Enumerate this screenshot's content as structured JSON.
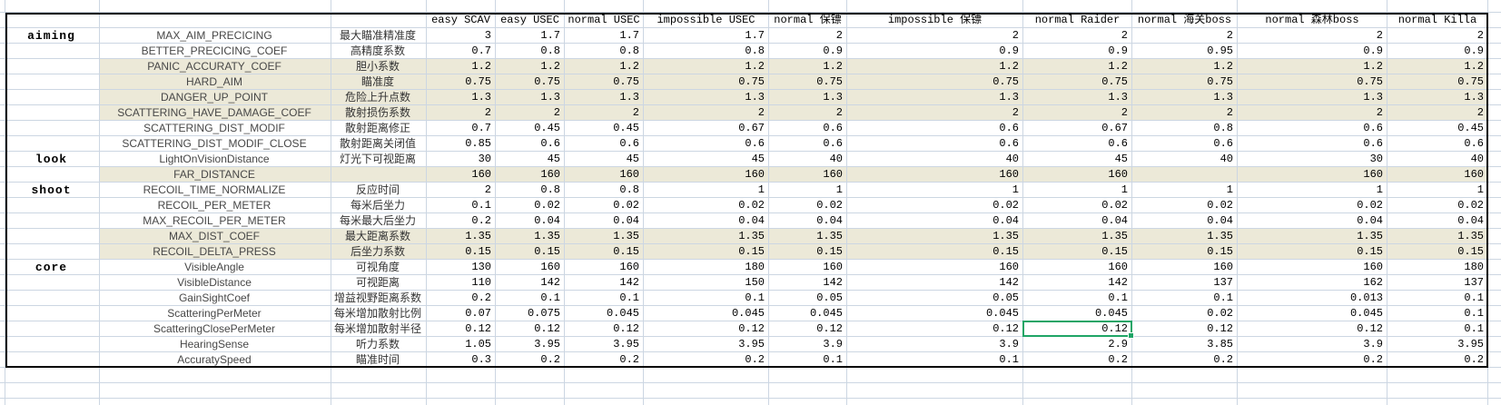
{
  "table": {
    "left_headers": {
      "category": "",
      "param": "",
      "cn": ""
    },
    "value_columns": [
      "easy SCAV",
      "easy USEC",
      "normal USEC",
      "impossible USEC",
      "normal 保镖",
      "impossible 保镖",
      "normal Raider",
      "normal 海关boss",
      "normal 森林boss",
      "normal Killa"
    ],
    "rows": [
      {
        "category": "aiming",
        "param": "MAX_AIM_PRECICING",
        "cn": "最大瞄准精准度",
        "shaded": false,
        "values": [
          "3",
          "1.7",
          "1.7",
          "1.7",
          "2",
          "2",
          "2",
          "2",
          "2",
          "2"
        ]
      },
      {
        "category": "",
        "param": "BETTER_PRECICING_COEF",
        "cn": "高精度系数",
        "shaded": false,
        "values": [
          "0.7",
          "0.8",
          "0.8",
          "0.8",
          "0.9",
          "0.9",
          "0.9",
          "0.95",
          "0.9",
          "0.9"
        ]
      },
      {
        "category": "",
        "param": "PANIC_ACCURATY_COEF",
        "cn": "胆小系数",
        "shaded": true,
        "values": [
          "1.2",
          "1.2",
          "1.2",
          "1.2",
          "1.2",
          "1.2",
          "1.2",
          "1.2",
          "1.2",
          "1.2"
        ]
      },
      {
        "category": "",
        "param": "HARD_AIM",
        "cn": "瞄准度",
        "shaded": true,
        "values": [
          "0.75",
          "0.75",
          "0.75",
          "0.75",
          "0.75",
          "0.75",
          "0.75",
          "0.75",
          "0.75",
          "0.75"
        ]
      },
      {
        "category": "",
        "param": "DANGER_UP_POINT",
        "cn": "危险上升点数",
        "shaded": true,
        "values": [
          "1.3",
          "1.3",
          "1.3",
          "1.3",
          "1.3",
          "1.3",
          "1.3",
          "1.3",
          "1.3",
          "1.3"
        ]
      },
      {
        "category": "",
        "param": "SCATTERING_HAVE_DAMAGE_COEF",
        "cn": "散射损伤系数",
        "shaded": true,
        "values": [
          "2",
          "2",
          "2",
          "2",
          "2",
          "2",
          "2",
          "2",
          "2",
          "2"
        ]
      },
      {
        "category": "",
        "param": "SCATTERING_DIST_MODIF",
        "cn": "散射距离修正",
        "shaded": false,
        "values": [
          "0.7",
          "0.45",
          "0.45",
          "0.67",
          "0.6",
          "0.6",
          "0.67",
          "0.8",
          "0.6",
          "0.45"
        ]
      },
      {
        "category": "",
        "param": "SCATTERING_DIST_MODIF_CLOSE",
        "cn": "散射距离关闭值",
        "shaded": false,
        "values": [
          "0.85",
          "0.6",
          "0.6",
          "0.6",
          "0.6",
          "0.6",
          "0.6",
          "0.6",
          "0.6",
          "0.6"
        ]
      },
      {
        "category": "look",
        "param": "LightOnVisionDistance",
        "cn": "灯光下可视距离",
        "shaded": false,
        "values": [
          "30",
          "45",
          "45",
          "45",
          "40",
          "40",
          "45",
          "40",
          "30",
          "40"
        ]
      },
      {
        "category": "",
        "param": "FAR_DISTANCE",
        "cn": "",
        "shaded": true,
        "values": [
          "160",
          "160",
          "160",
          "160",
          "160",
          "160",
          "160",
          "",
          "160",
          "160"
        ]
      },
      {
        "category": "shoot",
        "param": "RECOIL_TIME_NORMALIZE",
        "cn": "反应时间",
        "shaded": false,
        "values": [
          "2",
          "0.8",
          "0.8",
          "1",
          "1",
          "1",
          "1",
          "1",
          "1",
          "1"
        ]
      },
      {
        "category": "",
        "param": "RECOIL_PER_METER",
        "cn": "每米后坐力",
        "shaded": false,
        "values": [
          "0.1",
          "0.02",
          "0.02",
          "0.02",
          "0.02",
          "0.02",
          "0.02",
          "0.02",
          "0.02",
          "0.02"
        ]
      },
      {
        "category": "",
        "param": "MAX_RECOIL_PER_METER",
        "cn": "每米最大后坐力",
        "shaded": false,
        "values": [
          "0.2",
          "0.04",
          "0.04",
          "0.04",
          "0.04",
          "0.04",
          "0.04",
          "0.04",
          "0.04",
          "0.04"
        ]
      },
      {
        "category": "",
        "param": "MAX_DIST_COEF",
        "cn": "最大距离系数",
        "shaded": true,
        "values": [
          "1.35",
          "1.35",
          "1.35",
          "1.35",
          "1.35",
          "1.35",
          "1.35",
          "1.35",
          "1.35",
          "1.35"
        ]
      },
      {
        "category": "",
        "param": "RECOIL_DELTA_PRESS",
        "cn": "后坐力系数",
        "shaded": true,
        "values": [
          "0.15",
          "0.15",
          "0.15",
          "0.15",
          "0.15",
          "0.15",
          "0.15",
          "0.15",
          "0.15",
          "0.15"
        ]
      },
      {
        "category": "core",
        "param": "VisibleAngle",
        "cn": "可视角度",
        "shaded": false,
        "values": [
          "130",
          "160",
          "160",
          "180",
          "160",
          "160",
          "160",
          "160",
          "160",
          "180"
        ]
      },
      {
        "category": "",
        "param": "VisibleDistance",
        "cn": "可视距离",
        "shaded": false,
        "values": [
          "110",
          "142",
          "142",
          "150",
          "142",
          "142",
          "142",
          "137",
          "162",
          "137"
        ]
      },
      {
        "category": "",
        "param": "GainSightCoef",
        "cn": "增益视野距离系数",
        "shaded": false,
        "values": [
          "0.2",
          "0.1",
          "0.1",
          "0.1",
          "0.05",
          "0.05",
          "0.1",
          "0.1",
          "0.013",
          "0.1"
        ]
      },
      {
        "category": "",
        "param": "ScatteringPerMeter",
        "cn": "每米增加散射比例",
        "shaded": false,
        "values": [
          "0.07",
          "0.075",
          "0.045",
          "0.045",
          "0.045",
          "0.045",
          "0.045",
          "0.02",
          "0.045",
          "0.1"
        ]
      },
      {
        "category": "",
        "param": "ScatteringClosePerMeter",
        "cn": "每米增加散射半径",
        "shaded": false,
        "values": [
          "0.12",
          "0.12",
          "0.12",
          "0.12",
          "0.12",
          "0.12",
          "0.12",
          "0.12",
          "0.12",
          "0.1"
        ]
      },
      {
        "category": "",
        "param": "HearingSense",
        "cn": "听力系数",
        "shaded": false,
        "values": [
          "1.05",
          "3.95",
          "3.95",
          "3.95",
          "3.9",
          "3.9",
          "2.9",
          "3.85",
          "3.9",
          "3.95"
        ]
      },
      {
        "category": "",
        "param": "AccuratySpeed",
        "cn": "瞄准时间",
        "shaded": false,
        "values": [
          "0.3",
          "0.2",
          "0.2",
          "0.2",
          "0.1",
          "0.1",
          "0.2",
          "0.2",
          "0.2",
          "0.2"
        ]
      }
    ],
    "selected_cell": {
      "row_index": 19,
      "value_col_index": 6,
      "row_param": "ScatteringClosePerMeter",
      "column": "normal Raider",
      "value": "0.12"
    }
  },
  "colors": {
    "row_shade": "#ece9d8",
    "gridline": "#ccd6e2",
    "selection_green": "#1fa566",
    "table_border": "#000000",
    "background": "#ffffff"
  }
}
